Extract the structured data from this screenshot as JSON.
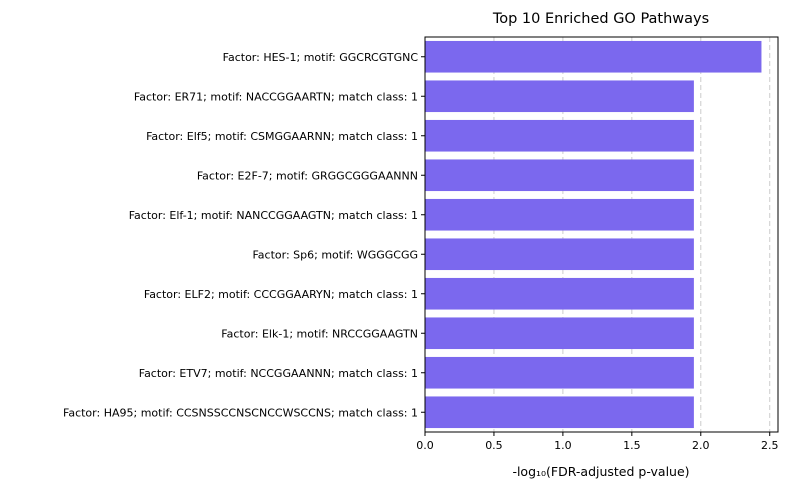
{
  "chart_data": {
    "type": "bar",
    "orientation": "horizontal",
    "title": "Top 10 Enriched GO Pathways",
    "xlabel": "-log₁₀(FDR-adjusted p-value)",
    "ylabel": "",
    "categories": [
      "Factor: HES-1; motif: GGCRCGTGNC",
      "Factor: ER71; motif: NACCGGAARTN; match class: 1",
      "Factor: Elf5; motif: CSMGGAARNN; match class: 1",
      "Factor: E2F-7; motif: GRGGCGGGAANNN",
      "Factor: Elf-1; motif: NANCCGGAAGTN; match class: 1",
      "Factor: Sp6; motif: WGGGCGG",
      "Factor: ELF2; motif: CCCGGAARYN; match class: 1",
      "Factor: Elk-1; motif: NRCCGGAAGTN",
      "Factor: ETV7; motif: NCCGGAANNN; match class: 1",
      "Factor: HA95; motif: CCSNSSCCNSCNCCWSCCNS; match class: 1"
    ],
    "values": [
      2.44,
      1.95,
      1.95,
      1.95,
      1.95,
      1.95,
      1.95,
      1.95,
      1.95,
      1.95
    ],
    "xlim": [
      0,
      2.56
    ],
    "xticks": [
      "0.0",
      "0.5",
      "1.0",
      "1.5",
      "2.0",
      "2.5"
    ],
    "grid": "x-dashed",
    "bar_color": "#7B68EE",
    "grid_color": "#cccccc"
  }
}
